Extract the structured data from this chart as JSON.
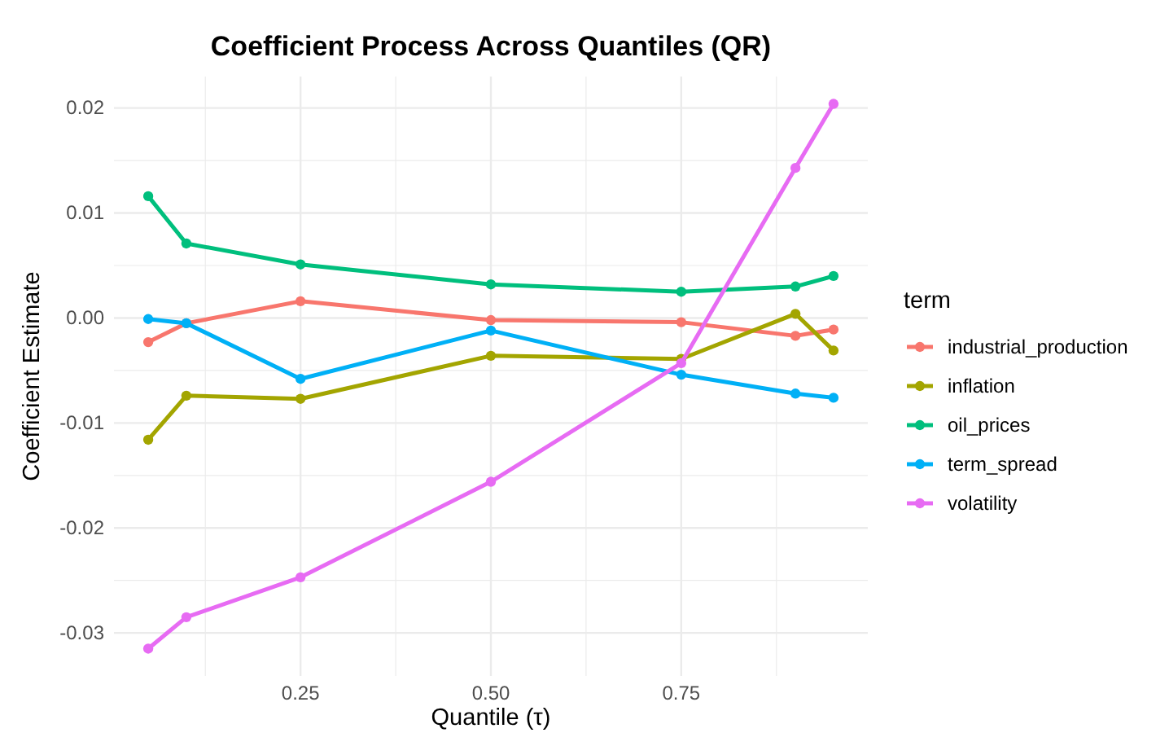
{
  "chart_data": {
    "type": "line",
    "title": "Coefficient Process Across Quantiles (QR)",
    "xlabel": "Quantile (τ)",
    "ylabel": "Coefficient Estimate",
    "legend_title": "term",
    "x": [
      0.05,
      0.1,
      0.25,
      0.5,
      0.75,
      0.9,
      0.95
    ],
    "series": [
      {
        "name": "industrial_production",
        "color": "#f8766d",
        "values": [
          -0.0023,
          -0.0005,
          0.0016,
          -0.0002,
          -0.0004,
          -0.0017,
          -0.0011
        ]
      },
      {
        "name": "inflation",
        "color": "#a3a500",
        "values": [
          -0.0116,
          -0.0074,
          -0.0077,
          -0.0036,
          -0.0039,
          0.0004,
          -0.0031
        ]
      },
      {
        "name": "oil_prices",
        "color": "#00bf7d",
        "values": [
          0.0116,
          0.0071,
          0.0051,
          0.0032,
          0.0025,
          0.003,
          0.004
        ]
      },
      {
        "name": "term_spread",
        "color": "#00b0f6",
        "values": [
          -0.0001,
          -0.0005,
          -0.0058,
          -0.0012,
          -0.0054,
          -0.0072,
          -0.0076
        ]
      },
      {
        "name": "volatility",
        "color": "#e76bf3",
        "values": [
          -0.0315,
          -0.0285,
          -0.0247,
          -0.0156,
          -0.0043,
          0.0143,
          0.0204
        ]
      }
    ],
    "xlim": [
      0.005,
      0.995
    ],
    "ylim": [
      -0.0341,
      0.023
    ],
    "xticks": [
      {
        "value": 0.125,
        "label": null
      },
      {
        "value": 0.25,
        "label": "0.25"
      },
      {
        "value": 0.375,
        "label": null
      },
      {
        "value": 0.5,
        "label": "0.50"
      },
      {
        "value": 0.625,
        "label": null
      },
      {
        "value": 0.75,
        "label": "0.75"
      },
      {
        "value": 0.875,
        "label": null
      }
    ],
    "yticks": [
      {
        "value": -0.03,
        "label": "-0.03"
      },
      {
        "value": -0.025,
        "label": null
      },
      {
        "value": -0.02,
        "label": "-0.02"
      },
      {
        "value": -0.015,
        "label": null
      },
      {
        "value": -0.01,
        "label": "-0.01"
      },
      {
        "value": -0.005,
        "label": null
      },
      {
        "value": 0,
        "label": "0.00"
      },
      {
        "value": 0.005,
        "label": null
      },
      {
        "value": 0.01,
        "label": "0.01"
      },
      {
        "value": 0.015,
        "label": null
      },
      {
        "value": 0.02,
        "label": "0.02"
      }
    ],
    "grid": true,
    "legend": "right",
    "marker": "circle",
    "line_style": "solid"
  }
}
